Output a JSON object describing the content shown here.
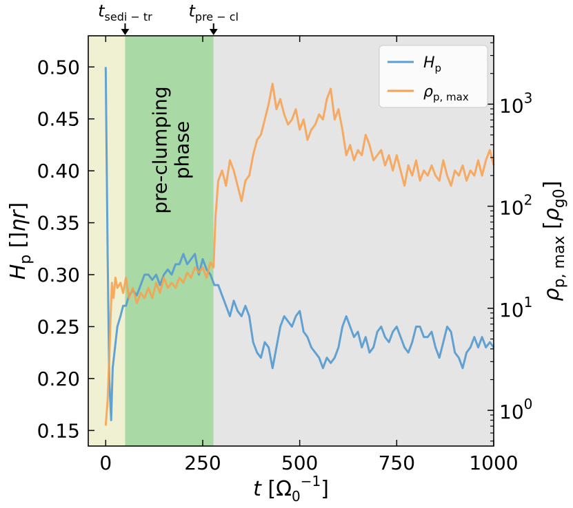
{
  "chart_data": {
    "type": "line",
    "xlabel": "t [Ω₀⁻¹]",
    "xlabel_parts": {
      "var": "t",
      "unit": "[Ω",
      "sub": "0",
      "sup": "−1",
      "close": "]"
    },
    "ylabel_left": {
      "var": "H",
      "sub": "p",
      "unit": " [ηr]"
    },
    "ylabel_right": {
      "var": "ρ",
      "sub": "p, max",
      "unit": " [ρ",
      "unit_sub": "g0",
      "close": "]"
    },
    "xlim": [
      -45,
      1000
    ],
    "ylim_left": [
      0.135,
      0.53
    ],
    "ylim_right_log10": [
      -0.35,
      3.67
    ],
    "xticks": [
      0,
      250,
      500,
      750,
      1000
    ],
    "xtick_labels": [
      "0",
      "250",
      "500",
      "750",
      "1000"
    ],
    "yticks_left": [
      0.15,
      0.2,
      0.25,
      0.3,
      0.35,
      0.4,
      0.45,
      0.5
    ],
    "ytick_labels_left": [
      "0.15",
      "0.20",
      "0.25",
      "0.30",
      "0.35",
      "0.40",
      "0.45",
      "0.50"
    ],
    "yticks_right_log10": [
      0,
      1,
      2,
      3
    ],
    "ytick_labels_right": [
      {
        "base": "10",
        "exp": "0"
      },
      {
        "base": "10",
        "exp": "1"
      },
      {
        "base": "10",
        "exp": "2"
      },
      {
        "base": "10",
        "exp": "3"
      }
    ],
    "regions": [
      {
        "name": "sedimentation",
        "x0": -45,
        "x1": 50,
        "color": "#f0f0d2"
      },
      {
        "name": "pre-clumping",
        "x0": 50,
        "x1": 278,
        "color": "#a9d9a4"
      },
      {
        "name": "clumping",
        "x0": 278,
        "x1": 1000,
        "color": "#e5e5e5"
      }
    ],
    "phase_label_lines": [
      "pre-clumping",
      "phase"
    ],
    "phase_label_pos": {
      "x": 164,
      "y": 0.42
    },
    "markers": [
      {
        "x": 50,
        "label": {
          "var": "t",
          "sub": "sedi − tr"
        }
      },
      {
        "x": 278,
        "label": {
          "var": "t",
          "sub": "pre − cl"
        }
      }
    ],
    "legend": [
      {
        "var": "H",
        "sub": "p",
        "color": "#5a9dd0"
      },
      {
        "var": "ρ",
        "sub": "p, max",
        "color": "#f7a04f"
      }
    ],
    "series": [
      {
        "name": "H_p",
        "axis": "left",
        "color": "#5a9dd0",
        "x": [
          0,
          5,
          9,
          14,
          18,
          24,
          30,
          38,
          45,
          52,
          60,
          70,
          80,
          90,
          100,
          110,
          120,
          130,
          140,
          150,
          160,
          170,
          180,
          190,
          200,
          210,
          220,
          230,
          240,
          250,
          260,
          270,
          280,
          290,
          300,
          310,
          320,
          330,
          340,
          350,
          360,
          370,
          380,
          390,
          400,
          410,
          420,
          430,
          440,
          450,
          460,
          470,
          480,
          490,
          500,
          510,
          520,
          530,
          540,
          550,
          560,
          570,
          580,
          590,
          600,
          610,
          620,
          630,
          640,
          650,
          660,
          670,
          680,
          690,
          700,
          710,
          720,
          730,
          740,
          750,
          760,
          770,
          780,
          790,
          800,
          810,
          820,
          830,
          840,
          850,
          860,
          870,
          880,
          890,
          900,
          910,
          920,
          930,
          940,
          950,
          960,
          970,
          980,
          990,
          1000
        ],
        "y": [
          0.5,
          0.32,
          0.2,
          0.16,
          0.21,
          0.23,
          0.25,
          0.26,
          0.27,
          0.27,
          0.28,
          0.285,
          0.28,
          0.29,
          0.3,
          0.3,
          0.295,
          0.3,
          0.29,
          0.3,
          0.305,
          0.3,
          0.31,
          0.31,
          0.32,
          0.31,
          0.315,
          0.32,
          0.3,
          0.315,
          0.305,
          0.3,
          0.29,
          0.29,
          0.28,
          0.27,
          0.26,
          0.275,
          0.265,
          0.26,
          0.27,
          0.26,
          0.235,
          0.225,
          0.22,
          0.235,
          0.23,
          0.21,
          0.23,
          0.25,
          0.26,
          0.255,
          0.25,
          0.26,
          0.265,
          0.245,
          0.24,
          0.23,
          0.225,
          0.22,
          0.21,
          0.22,
          0.215,
          0.22,
          0.23,
          0.25,
          0.26,
          0.25,
          0.24,
          0.245,
          0.23,
          0.24,
          0.225,
          0.23,
          0.245,
          0.25,
          0.24,
          0.235,
          0.245,
          0.25,
          0.24,
          0.23,
          0.225,
          0.235,
          0.25,
          0.25,
          0.24,
          0.24,
          0.245,
          0.23,
          0.22,
          0.235,
          0.25,
          0.245,
          0.225,
          0.22,
          0.21,
          0.225,
          0.23,
          0.24,
          0.23,
          0.24,
          0.23,
          0.235,
          0.23
        ]
      },
      {
        "name": "rho_p_max",
        "axis": "right_log10",
        "color": "#f7a04f",
        "x": [
          0,
          5,
          9,
          13,
          16,
          20,
          25,
          30,
          38,
          45,
          52,
          60,
          70,
          80,
          90,
          100,
          110,
          120,
          130,
          140,
          150,
          160,
          170,
          180,
          190,
          200,
          210,
          220,
          230,
          240,
          250,
          260,
          270,
          278,
          283,
          290,
          300,
          310,
          320,
          330,
          340,
          350,
          360,
          370,
          380,
          390,
          400,
          410,
          420,
          430,
          440,
          450,
          460,
          470,
          480,
          490,
          500,
          510,
          520,
          530,
          540,
          550,
          560,
          570,
          580,
          590,
          600,
          610,
          620,
          630,
          640,
          650,
          660,
          670,
          680,
          690,
          700,
          710,
          720,
          730,
          740,
          750,
          760,
          770,
          780,
          790,
          800,
          810,
          820,
          830,
          840,
          850,
          860,
          870,
          880,
          890,
          900,
          910,
          920,
          930,
          940,
          950,
          960,
          970,
          980,
          990,
          1000
        ],
        "y": [
          -0.15,
          0.1,
          0.5,
          0.95,
          1.25,
          1.1,
          1.3,
          1.2,
          1.25,
          1.15,
          1.3,
          1.1,
          1.2,
          1.05,
          1.15,
          1.1,
          1.2,
          1.1,
          1.25,
          1.15,
          1.3,
          1.2,
          1.25,
          1.2,
          1.3,
          1.25,
          1.35,
          1.3,
          1.4,
          1.35,
          1.4,
          1.3,
          1.45,
          1.4,
          1.9,
          2.25,
          2.35,
          2.2,
          2.45,
          2.35,
          2.2,
          2.05,
          2.25,
          2.3,
          2.5,
          2.65,
          2.7,
          2.85,
          3.0,
          3.2,
          2.95,
          3.05,
          2.9,
          2.8,
          2.85,
          2.95,
          2.75,
          2.85,
          2.65,
          2.75,
          2.8,
          2.9,
          2.85,
          3.05,
          3.15,
          2.85,
          2.95,
          2.75,
          2.5,
          2.6,
          2.45,
          2.55,
          2.5,
          2.7,
          2.6,
          2.45,
          2.5,
          2.55,
          2.4,
          2.5,
          2.35,
          2.5,
          2.35,
          2.2,
          2.4,
          2.3,
          2.45,
          2.25,
          2.35,
          2.3,
          2.4,
          2.3,
          2.25,
          2.45,
          2.3,
          2.2,
          2.35,
          2.3,
          2.4,
          2.25,
          2.35,
          2.3,
          2.45,
          2.3,
          2.45,
          2.55,
          2.4
        ]
      }
    ]
  }
}
